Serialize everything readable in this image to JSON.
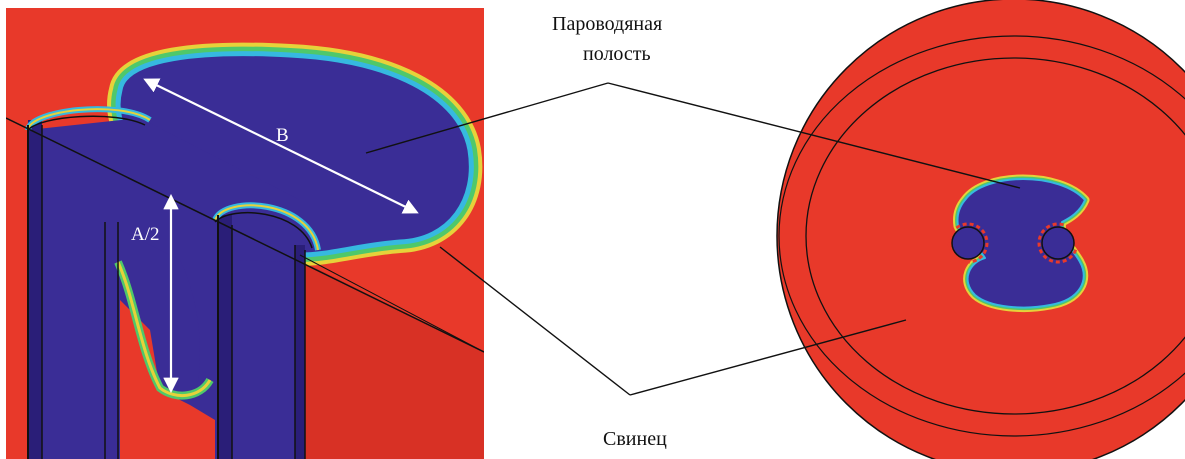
{
  "labels": {
    "cavity_line1": "Пароводяная",
    "cavity_line2": "полость",
    "lead": "Свинец",
    "dim_b": "B",
    "dim_a_half": "A/2"
  },
  "colors": {
    "lead": "#e8392a",
    "cavity": "#3a2d96",
    "edge_yellow": "#e6d23a",
    "edge_green": "#4fc86a",
    "edge_cyan": "#36b9e0",
    "leader": "#111111",
    "dimension_arrow": "#ffffff"
  }
}
